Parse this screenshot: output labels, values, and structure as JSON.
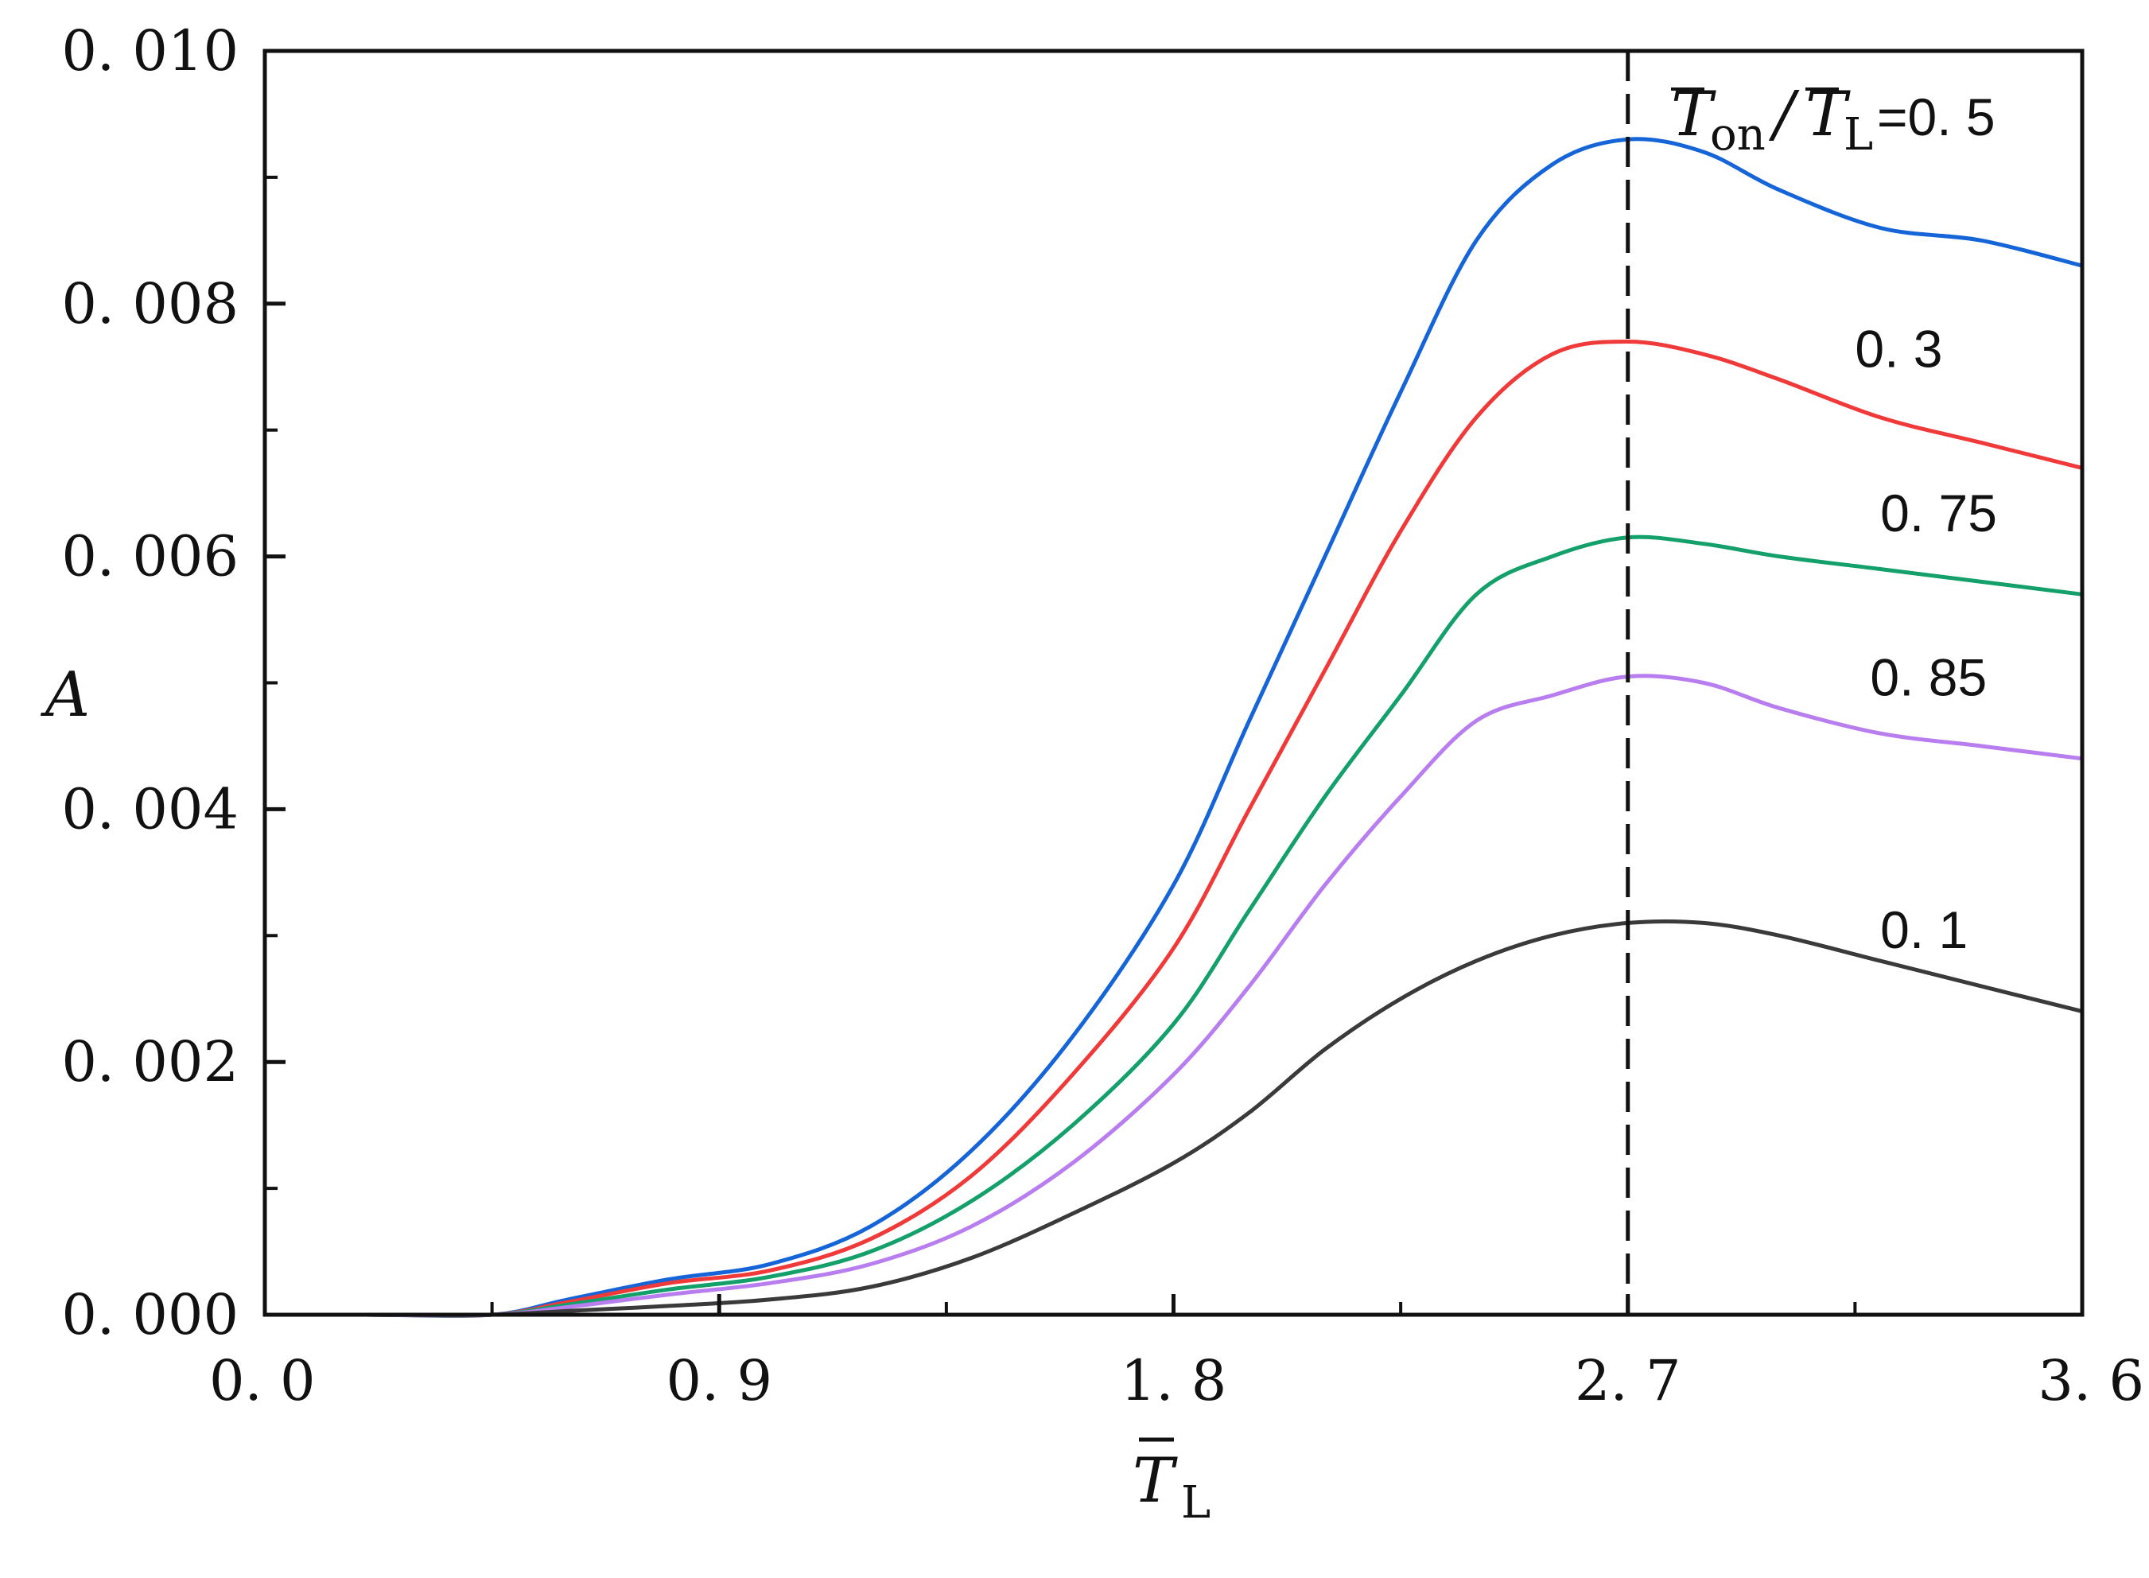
{
  "chart_data": {
    "type": "line",
    "title": "",
    "xlabel": {
      "main": "T",
      "sub": "L"
    },
    "ylabel": "A",
    "xlim": [
      0,
      3.6
    ],
    "ylim": [
      0,
      0.01
    ],
    "x_ticks": [
      {
        "value": 0,
        "label": "0. 0"
      },
      {
        "value": 0.9,
        "label": "0. 9"
      },
      {
        "value": 1.8,
        "label": "1. 8"
      },
      {
        "value": 2.7,
        "label": "2. 7"
      },
      {
        "value": 3.6,
        "label": "3. 6"
      }
    ],
    "y_ticks": [
      {
        "value": 0,
        "label": "0. 000"
      },
      {
        "value": 0.002,
        "label": "0. 002"
      },
      {
        "value": 0.004,
        "label": "0. 004"
      },
      {
        "value": 0.006,
        "label": "0. 006"
      },
      {
        "value": 0.008,
        "label": "0. 008"
      },
      {
        "value": 0.01,
        "label": "0. 010"
      }
    ],
    "vline": {
      "x": 2.7,
      "style": "dashed"
    },
    "legend_header": {
      "t1": "T",
      "s1": "on",
      "slash": "/",
      "t2": "T",
      "s2": "L",
      "eq": "=0. 5"
    },
    "series": [
      {
        "name": "0.5",
        "label": "",
        "color": "#1565d8",
        "x": [
          0,
          0.2,
          0.45,
          0.6,
          0.8,
          1.0,
          1.2,
          1.4,
          1.6,
          1.8,
          1.95,
          2.1,
          2.25,
          2.4,
          2.55,
          2.7,
          2.85,
          3.0,
          3.2,
          3.4,
          3.6
        ],
        "y": [
          0,
          0,
          0,
          0.00012,
          0.00028,
          0.0004,
          0.0007,
          0.0013,
          0.0022,
          0.0034,
          0.0047,
          0.006,
          0.0073,
          0.0085,
          0.0091,
          0.0093,
          0.0092,
          0.0089,
          0.0086,
          0.0085,
          0.0083
        ]
      },
      {
        "name": "0.3",
        "label": "0. 3",
        "color": "#f03a3a",
        "x": [
          0,
          0.2,
          0.45,
          0.6,
          0.8,
          1.0,
          1.2,
          1.4,
          1.6,
          1.8,
          1.95,
          2.1,
          2.25,
          2.4,
          2.55,
          2.7,
          2.85,
          3.0,
          3.2,
          3.4,
          3.6
        ],
        "y": [
          0,
          0,
          0,
          0.0001,
          0.00025,
          0.00035,
          0.0006,
          0.0011,
          0.0019,
          0.0029,
          0.004,
          0.0051,
          0.0062,
          0.0071,
          0.0076,
          0.0077,
          0.0076,
          0.0074,
          0.0071,
          0.0069,
          0.0067
        ]
      },
      {
        "name": "0.75",
        "label": "0. 75",
        "color": "#13a06a",
        "x": [
          0,
          0.2,
          0.45,
          0.6,
          0.8,
          1.0,
          1.2,
          1.4,
          1.6,
          1.8,
          1.95,
          2.1,
          2.25,
          2.4,
          2.55,
          2.7,
          2.85,
          3.0,
          3.2,
          3.4,
          3.6
        ],
        "y": [
          0,
          0,
          0,
          8e-05,
          0.0002,
          0.0003,
          0.0005,
          0.0009,
          0.0015,
          0.0023,
          0.0032,
          0.0041,
          0.0049,
          0.0057,
          0.006,
          0.00615,
          0.0061,
          0.006,
          0.0059,
          0.0058,
          0.0057
        ]
      },
      {
        "name": "0.85",
        "label": "0. 85",
        "color": "#b87ef0",
        "x": [
          0,
          0.2,
          0.45,
          0.6,
          0.8,
          1.0,
          1.2,
          1.4,
          1.6,
          1.8,
          1.95,
          2.1,
          2.25,
          2.4,
          2.55,
          2.7,
          2.85,
          3.0,
          3.2,
          3.4,
          3.6
        ],
        "y": [
          0,
          0,
          0,
          6e-05,
          0.00016,
          0.00025,
          0.0004,
          0.0007,
          0.0012,
          0.0019,
          0.0026,
          0.0034,
          0.0041,
          0.0047,
          0.0049,
          0.00505,
          0.005,
          0.0048,
          0.0046,
          0.0045,
          0.0044
        ]
      },
      {
        "name": "0.1",
        "label": "0. 1",
        "color": "#3a3a3a",
        "x": [
          0,
          0.2,
          0.45,
          0.6,
          0.8,
          1.0,
          1.2,
          1.4,
          1.6,
          1.8,
          1.95,
          2.1,
          2.25,
          2.4,
          2.55,
          2.7,
          2.85,
          3.0,
          3.2,
          3.4,
          3.6
        ],
        "y": [
          0,
          0,
          0,
          3e-05,
          7e-05,
          0.00012,
          0.00022,
          0.00045,
          0.0008,
          0.0012,
          0.0016,
          0.0021,
          0.0025,
          0.0028,
          0.003,
          0.0031,
          0.0031,
          0.003,
          0.0028,
          0.0026,
          0.0024
        ]
      }
    ]
  }
}
